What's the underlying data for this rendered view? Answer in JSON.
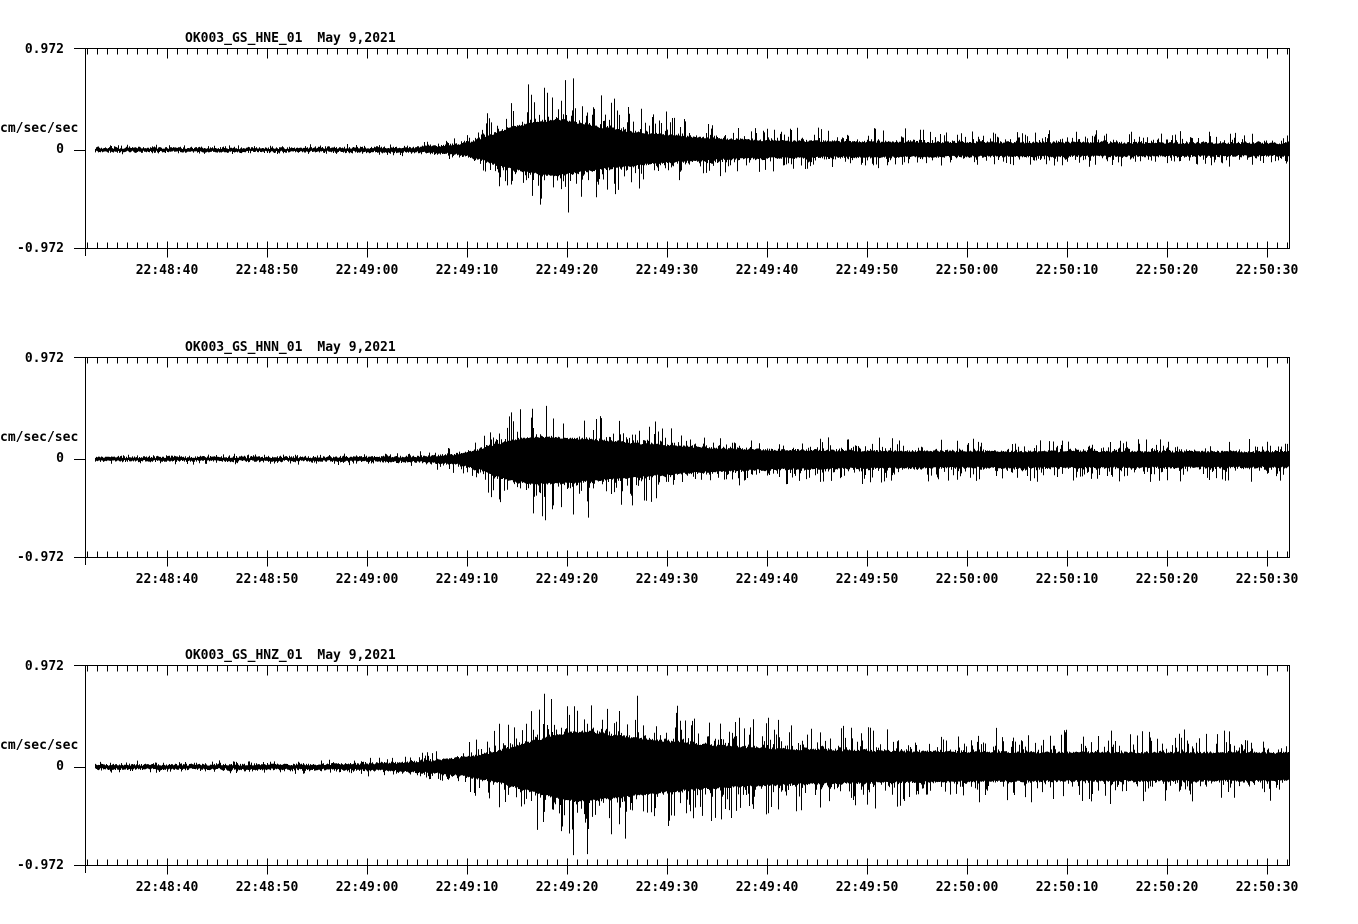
{
  "page": {
    "background": "#ffffff",
    "ink_color": "#000000",
    "description": "Three-panel strong-motion seismogram record"
  },
  "chart_data": {
    "type": "line",
    "subtype": "seismogram-waveform",
    "date_label": "May 9,2021",
    "ylabel": "cm/sec/sec",
    "yticks": [
      "0.972",
      "0",
      "-0.972"
    ],
    "ylim": [
      -0.972,
      0.972
    ],
    "x_tick_labels": [
      "22:48:40",
      "22:48:50",
      "22:49:00",
      "22:49:10",
      "22:49:20",
      "22:49:30",
      "22:49:40",
      "22:49:50",
      "22:50:00",
      "22:50:10",
      "22:50:20",
      "22:50:30"
    ],
    "x_start_time": "22:48:31.8",
    "x_end_time": "22:50:32.3",
    "x_span_seconds": 120.5,
    "x_first_major_offset_seconds": 8.2,
    "x_major_interval_seconds": 10,
    "x_minor_interval_seconds": 1,
    "grid": false,
    "legend": false,
    "panels": [
      {
        "station": "OK003_GS_HNE_01",
        "date": "May 9,2021",
        "units": "cm/sec/sec",
        "full_scale": 0.972,
        "peak_positive": 0.8,
        "peak_negative": -0.68,
        "negative_scale": 0.85,
        "amplitude_envelope": [
          [
            0,
            0.05
          ],
          [
            22,
            0.05
          ],
          [
            28,
            0.055
          ],
          [
            33,
            0.07
          ],
          [
            37,
            0.13
          ],
          [
            39,
            0.25
          ],
          [
            41,
            0.45
          ],
          [
            43,
            0.62
          ],
          [
            45,
            0.72
          ],
          [
            47,
            0.8
          ],
          [
            49,
            0.72
          ],
          [
            51,
            0.62
          ],
          [
            54,
            0.5
          ],
          [
            57,
            0.42
          ],
          [
            61,
            0.34
          ],
          [
            65,
            0.28
          ],
          [
            70,
            0.24
          ],
          [
            78,
            0.22
          ],
          [
            90,
            0.2
          ],
          [
            105,
            0.19
          ],
          [
            120.5,
            0.18
          ]
        ]
      },
      {
        "station": "OK003_GS_HNN_01",
        "date": "May 9,2021",
        "units": "cm/sec/sec",
        "full_scale": 0.972,
        "peak_positive": 0.58,
        "peak_negative": -0.75,
        "negative_scale": 1.15,
        "amplitude_envelope": [
          [
            0,
            0.045
          ],
          [
            22,
            0.045
          ],
          [
            28,
            0.05
          ],
          [
            33,
            0.065
          ],
          [
            37,
            0.12
          ],
          [
            39,
            0.22
          ],
          [
            41,
            0.38
          ],
          [
            43,
            0.52
          ],
          [
            45,
            0.58
          ],
          [
            47,
            0.56
          ],
          [
            50,
            0.52
          ],
          [
            53,
            0.46
          ],
          [
            56,
            0.4
          ],
          [
            60,
            0.33
          ],
          [
            64,
            0.28
          ],
          [
            69,
            0.24
          ],
          [
            75,
            0.22
          ],
          [
            88,
            0.2
          ],
          [
            100,
            0.2
          ],
          [
            120.5,
            0.19
          ]
        ]
      },
      {
        "station": "OK003_GS_HNZ_01",
        "date": "May 9,2021",
        "units": "cm/sec/sec",
        "full_scale": 0.972,
        "peak_positive": 0.93,
        "peak_negative": -0.9,
        "negative_scale": 0.97,
        "amplitude_envelope": [
          [
            0,
            0.055
          ],
          [
            15,
            0.06
          ],
          [
            22,
            0.065
          ],
          [
            27,
            0.08
          ],
          [
            31,
            0.11
          ],
          [
            35,
            0.17
          ],
          [
            38,
            0.26
          ],
          [
            41,
            0.4
          ],
          [
            43,
            0.55
          ],
          [
            45,
            0.7
          ],
          [
            47,
            0.83
          ],
          [
            49,
            0.93
          ],
          [
            51,
            0.9
          ],
          [
            53,
            0.83
          ],
          [
            56,
            0.74
          ],
          [
            59,
            0.65
          ],
          [
            63,
            0.57
          ],
          [
            67,
            0.51
          ],
          [
            71,
            0.47
          ],
          [
            76,
            0.44
          ],
          [
            82,
            0.41
          ],
          [
            90,
            0.39
          ],
          [
            100,
            0.38
          ],
          [
            110,
            0.38
          ],
          [
            120.5,
            0.37
          ]
        ]
      }
    ]
  }
}
